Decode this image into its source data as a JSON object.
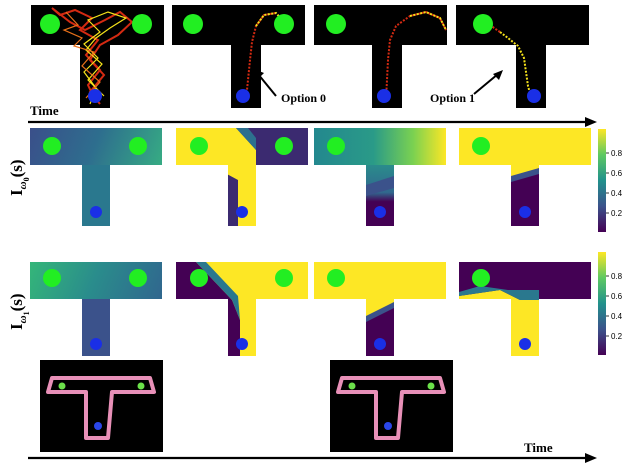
{
  "labels": {
    "time_top": "Time",
    "time_bottom": "Time",
    "option0": "Option 0",
    "option1": "Option 1",
    "row1_main": "I",
    "row1_sub": "ω",
    "row1_subsub": "0",
    "row1_arg": "(s)",
    "row2_main": "I",
    "row2_sub": "ω",
    "row2_subsub": "1",
    "row2_arg": "(s)"
  },
  "colorbar": {
    "ticks": [
      "0.8",
      "0.6",
      "0.4",
      "0.2"
    ],
    "tick_values": [
      0.8,
      0.6,
      0.4,
      0.2
    ],
    "range": [
      0.0,
      1.0
    ]
  },
  "colors": {
    "goal": "#22ee22",
    "agent": "#1a2fe6",
    "low": "#440154",
    "mid": "#21918c",
    "high": "#fde725",
    "track": "#e890b8",
    "background": "#000000"
  }
}
